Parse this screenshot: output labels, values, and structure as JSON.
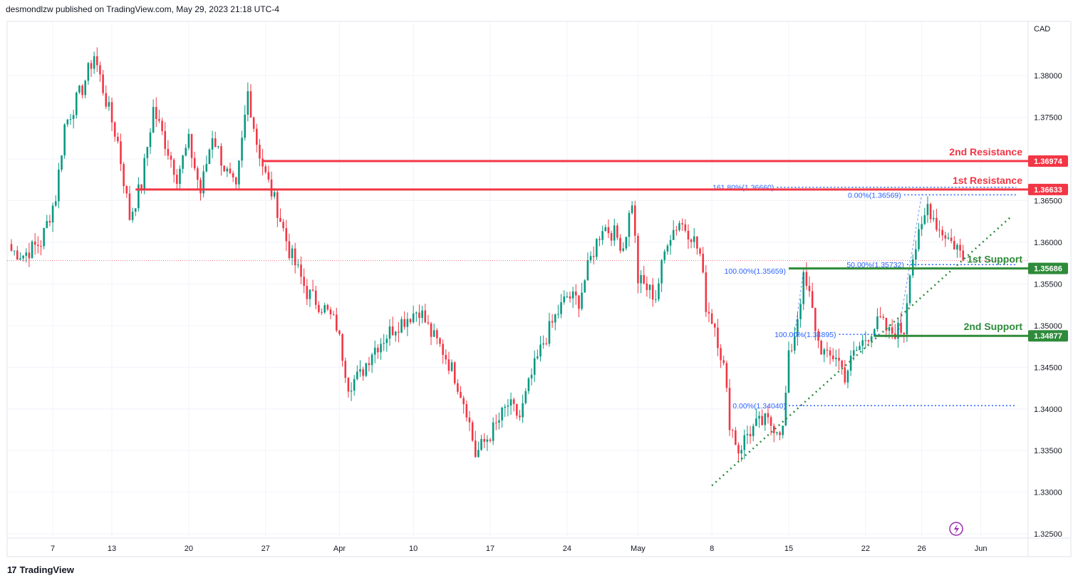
{
  "header": {
    "text": "desmondlzw published on TradingView.com, May 29, 2023 21:18 UTC-4"
  },
  "footer": {
    "logo_mark": "17",
    "brand": "TradingView"
  },
  "colors": {
    "up": "#089981",
    "down": "#f23645",
    "resistance": "#f23645",
    "support": "#2e8b3a",
    "fib": "#2962ff",
    "trend": "#2e8b3a",
    "grid": "#f0f3fa",
    "axis_text": "#131722"
  },
  "chart_data": {
    "type": "candlestick",
    "symbol_currency": "CAD",
    "y_range": [
      1.3245,
      1.3865
    ],
    "y_ticks": [
      1.325,
      1.33,
      1.335,
      1.34,
      1.345,
      1.35,
      1.355,
      1.36,
      1.365,
      1.37,
      1.375,
      1.38
    ],
    "y_tick_labels": [
      "1.32500",
      "1.33000",
      "1.33500",
      "1.34000",
      "1.34500",
      "1.35000",
      "1.35500",
      "1.36000",
      "1.36500",
      "1.37000",
      "1.37500",
      "1.38000"
    ],
    "x_labels": [
      "7",
      "13",
      "20",
      "27",
      "Apr",
      "10",
      "17",
      "24",
      "May",
      "8",
      "15",
      "22",
      "26",
      "Jun"
    ],
    "x_label_index": [
      14,
      34,
      60,
      86,
      111,
      136,
      162,
      188,
      212,
      237,
      263,
      289,
      308,
      328
    ],
    "last_price": 1.3578,
    "ohlc_keypoints": [
      {
        "i": 0,
        "close": 1.359
      },
      {
        "i": 4,
        "close": 1.3585
      },
      {
        "i": 10,
        "close": 1.36
      },
      {
        "i": 15,
        "close": 1.3655
      },
      {
        "i": 18,
        "close": 1.374
      },
      {
        "i": 24,
        "close": 1.3785
      },
      {
        "i": 28,
        "close": 1.3825
      },
      {
        "i": 32,
        "close": 1.377
      },
      {
        "i": 36,
        "close": 1.372
      },
      {
        "i": 40,
        "close": 1.363
      },
      {
        "i": 44,
        "close": 1.367
      },
      {
        "i": 48,
        "close": 1.376
      },
      {
        "i": 52,
        "close": 1.372
      },
      {
        "i": 56,
        "close": 1.368
      },
      {
        "i": 60,
        "close": 1.372
      },
      {
        "i": 64,
        "close": 1.366
      },
      {
        "i": 68,
        "close": 1.373
      },
      {
        "i": 72,
        "close": 1.369
      },
      {
        "i": 76,
        "close": 1.366
      },
      {
        "i": 80,
        "close": 1.378
      },
      {
        "i": 83,
        "close": 1.372
      },
      {
        "i": 86,
        "close": 1.368
      },
      {
        "i": 90,
        "close": 1.364
      },
      {
        "i": 94,
        "close": 1.359
      },
      {
        "i": 100,
        "close": 1.354
      },
      {
        "i": 106,
        "close": 1.352
      },
      {
        "i": 110,
        "close": 1.35
      },
      {
        "i": 114,
        "close": 1.343
      },
      {
        "i": 118,
        "close": 1.344
      },
      {
        "i": 122,
        "close": 1.347
      },
      {
        "i": 126,
        "close": 1.3485
      },
      {
        "i": 130,
        "close": 1.35
      },
      {
        "i": 134,
        "close": 1.351
      },
      {
        "i": 138,
        "close": 1.352
      },
      {
        "i": 142,
        "close": 1.349
      },
      {
        "i": 146,
        "close": 1.347
      },
      {
        "i": 150,
        "close": 1.344
      },
      {
        "i": 154,
        "close": 1.34
      },
      {
        "i": 157,
        "close": 1.3345
      },
      {
        "i": 160,
        "close": 1.336
      },
      {
        "i": 164,
        "close": 1.338
      },
      {
        "i": 168,
        "close": 1.3405
      },
      {
        "i": 172,
        "close": 1.339
      },
      {
        "i": 176,
        "close": 1.344
      },
      {
        "i": 180,
        "close": 1.348
      },
      {
        "i": 184,
        "close": 1.351
      },
      {
        "i": 188,
        "close": 1.3535
      },
      {
        "i": 192,
        "close": 1.353
      },
      {
        "i": 196,
        "close": 1.358
      },
      {
        "i": 200,
        "close": 1.362
      },
      {
        "i": 204,
        "close": 1.361
      },
      {
        "i": 207,
        "close": 1.3595
      },
      {
        "i": 210,
        "close": 1.365
      },
      {
        "i": 212,
        "close": 1.3555
      },
      {
        "i": 215,
        "close": 1.3545
      },
      {
        "i": 218,
        "close": 1.3535
      },
      {
        "i": 222,
        "close": 1.3605
      },
      {
        "i": 226,
        "close": 1.3625
      },
      {
        "i": 230,
        "close": 1.361
      },
      {
        "i": 233,
        "close": 1.3585
      },
      {
        "i": 235,
        "close": 1.3525
      },
      {
        "i": 238,
        "close": 1.35
      },
      {
        "i": 241,
        "close": 1.345
      },
      {
        "i": 243,
        "close": 1.3385
      },
      {
        "i": 246,
        "close": 1.335
      },
      {
        "i": 249,
        "close": 1.337
      },
      {
        "i": 252,
        "close": 1.338
      },
      {
        "i": 255,
        "close": 1.3385
      },
      {
        "i": 258,
        "close": 1.338
      },
      {
        "i": 261,
        "close": 1.3375
      },
      {
        "i": 263,
        "close": 1.346
      },
      {
        "i": 265,
        "close": 1.349
      },
      {
        "i": 268,
        "close": 1.3555
      },
      {
        "i": 270,
        "close": 1.3535
      },
      {
        "i": 273,
        "close": 1.348
      },
      {
        "i": 276,
        "close": 1.346
      },
      {
        "i": 279,
        "close": 1.3465
      },
      {
        "i": 282,
        "close": 1.344
      },
      {
        "i": 285,
        "close": 1.3465
      },
      {
        "i": 288,
        "close": 1.348
      },
      {
        "i": 291,
        "close": 1.3495
      },
      {
        "i": 294,
        "close": 1.3505
      },
      {
        "i": 297,
        "close": 1.349
      },
      {
        "i": 300,
        "close": 1.3495
      },
      {
        "i": 302,
        "close": 1.3495
      },
      {
        "i": 304,
        "close": 1.357
      },
      {
        "i": 306,
        "close": 1.3595
      },
      {
        "i": 308,
        "close": 1.3615
      },
      {
        "i": 310,
        "close": 1.3645
      },
      {
        "i": 312,
        "close": 1.363
      },
      {
        "i": 314,
        "close": 1.3615
      },
      {
        "i": 316,
        "close": 1.361
      },
      {
        "i": 318,
        "close": 1.36
      },
      {
        "i": 320,
        "close": 1.3595
      },
      {
        "i": 322,
        "close": 1.3578
      }
    ],
    "levels": [
      {
        "name": "2nd Resistance",
        "value": 1.36974,
        "label": "1.36974",
        "kind": "resistance",
        "x_start_index": 85
      },
      {
        "name": "1st Resistance",
        "value": 1.36633,
        "label": "1.36633",
        "kind": "resistance",
        "x_start_index": 42
      },
      {
        "name": "1st Support",
        "value": 1.35686,
        "label": "1.35686",
        "kind": "support",
        "x_start_index": 263
      },
      {
        "name": "2nd Support",
        "value": 1.34877,
        "label": "1.34877",
        "kind": "support",
        "x_start_index": 292
      }
    ],
    "fib_labels": [
      {
        "text": "161.80%(1.36660)",
        "value": 1.3666,
        "x_from_index": 259,
        "x_to_index": 340
      },
      {
        "text": "0.00%(1.36569)",
        "value": 1.36569,
        "x_from_index": 302,
        "x_to_index": 340
      },
      {
        "text": "100.00%(1.35659)",
        "value": 1.35659,
        "x_from_index": 263,
        "x_to_index": 263
      },
      {
        "text": "50.00%(1.35732)",
        "value": 1.35732,
        "x_from_index": 303,
        "x_to_index": 340
      },
      {
        "text": "0.00%(1.34040)",
        "value": 1.3404,
        "x_from_index": 263,
        "x_to_index": 340
      },
      {
        "text": "100.00%(1.34895)",
        "value": 1.34895,
        "x_from_index": 280,
        "x_to_index": 294
      }
    ],
    "trendline": {
      "from": {
        "i": 237,
        "value": 1.3308
      },
      "to": {
        "i": 338,
        "value": 1.363
      },
      "style": "dotted"
    },
    "fib_swing_lines": [
      {
        "from": {
          "i": 265,
          "value": 1.34895
        },
        "to": {
          "i": 268,
          "value": 1.3566
        }
      },
      {
        "from": {
          "i": 300,
          "value": 1.34895
        },
        "to": {
          "i": 308,
          "value": 1.3657
        }
      }
    ]
  }
}
